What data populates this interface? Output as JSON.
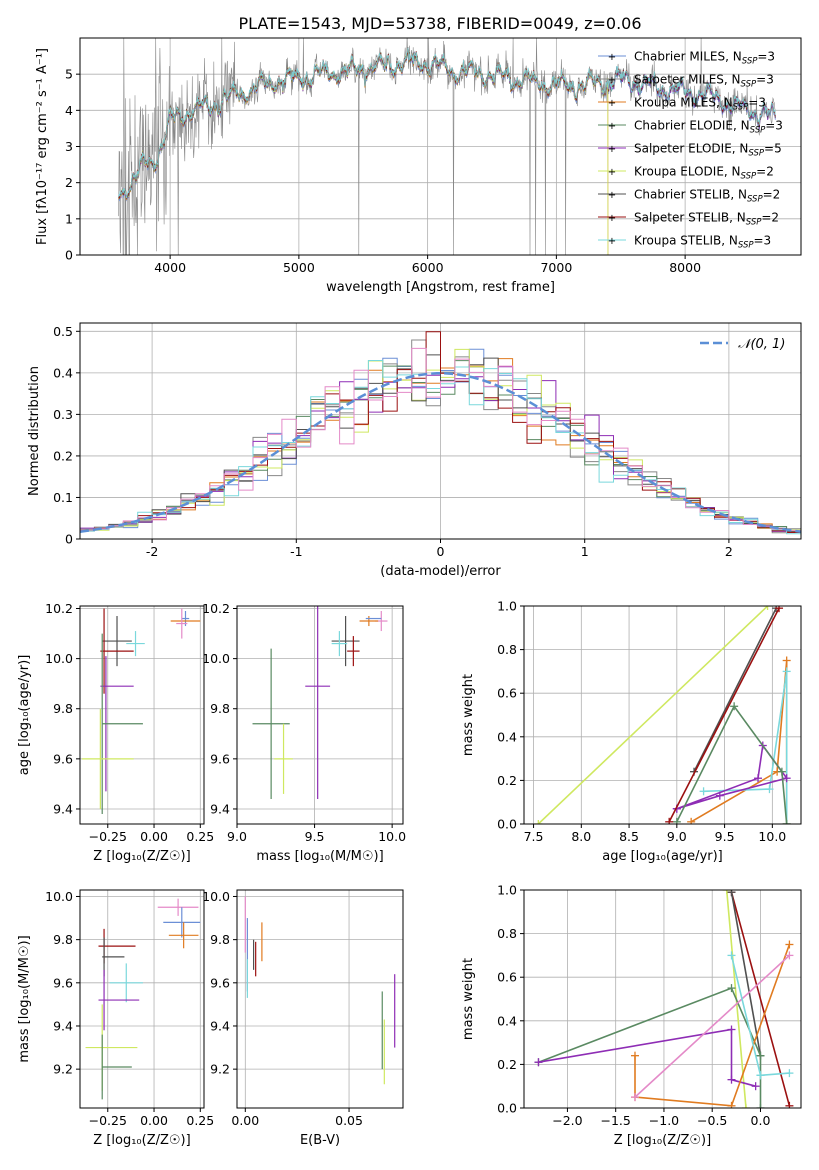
{
  "title": "PLATE=1543, MJD=53738, FIBERID=0049, z=0.06",
  "colors": {
    "chabrier_miles": "#6b8fd6",
    "salpeter_miles": "#888888",
    "kroupa_miles": "#e07b20",
    "chabrier_elodie": "#5a8a62",
    "salpeter_elodie": "#8e2db5",
    "kroupa_elodie": "#cfe860",
    "chabrier_stelib": "#505050",
    "salpeter_stelib": "#9b1010",
    "kroupa_stelib": "#7ad8dc",
    "pink": "#e48ac8",
    "normal_curve": "#5b8fd6"
  },
  "chart_data": [
    {
      "id": "spectrum",
      "type": "line",
      "xlabel": "wavelength [Angstrom, rest frame]",
      "ylabel": "Flux [fλ10⁻¹⁷ erg cm⁻² s⁻¹ A⁻¹]",
      "xlim": [
        3300,
        8900
      ],
      "ylim": [
        0,
        6
      ],
      "xticks": [
        4000,
        5000,
        6000,
        7000,
        8000
      ],
      "yticks": [
        0,
        1,
        2,
        3,
        4,
        5
      ],
      "legend_position": "right",
      "legend": [
        {
          "label": "Chabrier MILES, N_SSP=3",
          "color": "#6b8fd6"
        },
        {
          "label": "Salpeter MILES, N_SSP=3",
          "color": "#888888"
        },
        {
          "label": "Kroupa MILES, N_SSP=3",
          "color": "#e07b20"
        },
        {
          "label": "Chabrier ELODIE, N_SSP=3",
          "color": "#5a8a62"
        },
        {
          "label": "Salpeter ELODIE, N_SSP=5",
          "color": "#8e2db5"
        },
        {
          "label": "Kroupa ELODIE, N_SSP=2",
          "color": "#cfe860"
        },
        {
          "label": "Chabrier STELIB, N_SSP=2",
          "color": "#505050"
        },
        {
          "label": "Salpeter STELIB, N_SSP=2",
          "color": "#9b1010"
        },
        {
          "label": "Kroupa STELIB, N_SSP=3",
          "color": "#7ad8dc"
        }
      ],
      "data_range": [
        3600,
        8700
      ],
      "model_anchor_x": [
        3600,
        3700,
        3800,
        3900,
        4000,
        4100,
        4300,
        4500,
        4800,
        5000,
        5200,
        5400,
        5600,
        5800,
        6000,
        6200,
        6400,
        6600,
        6800,
        7000,
        7200,
        7400,
        7600,
        7800,
        8000,
        8200,
        8400,
        8600,
        8700
      ],
      "model_anchor_y": [
        1.7,
        2.0,
        2.5,
        2.7,
        3.7,
        3.9,
        4.1,
        4.4,
        4.8,
        4.9,
        5.0,
        5.1,
        5.2,
        5.3,
        5.3,
        5.1,
        5.0,
        4.9,
        4.8,
        4.7,
        4.7,
        4.8,
        4.8,
        4.6,
        4.5,
        4.4,
        4.1,
        3.9,
        3.8
      ]
    },
    {
      "id": "residuals",
      "type": "histogram",
      "xlabel": "(data-model)/error",
      "ylabel": "Normed distribution",
      "xlim": [
        -2.5,
        2.5
      ],
      "ylim": [
        0,
        0.52
      ],
      "xticks": [
        -2,
        -1,
        0,
        1,
        2
      ],
      "yticks": [
        0.0,
        0.1,
        0.2,
        0.3,
        0.4,
        0.5
      ],
      "legend_label": "𝒩(0, 1)",
      "legend_position": "top-right",
      "bin_width": 0.1
    },
    {
      "id": "age-z",
      "type": "errorbar",
      "xlabel": "Z [log₁₀(Z/Z☉)]",
      "ylabel": "age  [log₁₀(age/yr)]",
      "xlim": [
        -0.4,
        0.27
      ],
      "ylim": [
        9.34,
        10.21
      ],
      "xticks": [
        -0.25,
        0.0,
        0.25
      ],
      "xticklabels": [
        "−0.25",
        "0.00",
        "0.25"
      ],
      "yticks": [
        9.4,
        9.6,
        9.8,
        10.0,
        10.2
      ],
      "yticklabels": [
        "9.4",
        "9.6",
        "9.8",
        "10.0",
        "10.2"
      ],
      "points": [
        {
          "x": 0.17,
          "y": 10.16,
          "xerr": 0.02,
          "yerr": 0.03,
          "color": "#6b8fd6"
        },
        {
          "x": 0.17,
          "y": 10.15,
          "xerr": 0.08,
          "yerr": 0.0,
          "color": "#e07b20"
        },
        {
          "x": 0.15,
          "y": 10.14,
          "xerr": 0.03,
          "yerr": 0.06,
          "color": "#e48ac8"
        },
        {
          "x": -0.1,
          "y": 10.06,
          "xerr": 0.05,
          "yerr": 0.05,
          "color": "#7ad8dc"
        },
        {
          "x": -0.2,
          "y": 10.07,
          "xerr": 0.08,
          "yerr": 0.1,
          "color": "#505050"
        },
        {
          "x": -0.2,
          "y": 10.03,
          "xerr": 0.09,
          "yerr": 0.0,
          "color": "#9b1010"
        },
        {
          "x": -0.27,
          "y": 10.03,
          "xerr": 0.0,
          "yerr": 0.17,
          "color": "#9b1010"
        },
        {
          "x": -0.2,
          "y": 9.89,
          "xerr": 0.09,
          "yerr": 0.0,
          "color": "#8e2db5"
        },
        {
          "x": -0.26,
          "y": 9.74,
          "xerr": 0.0,
          "yerr": 0.27,
          "color": "#8e2db5"
        },
        {
          "x": -0.17,
          "y": 9.74,
          "xerr": 0.11,
          "yerr": 0.0,
          "color": "#5a8a62"
        },
        {
          "x": -0.28,
          "y": 9.74,
          "xerr": 0.0,
          "yerr": 0.36,
          "color": "#5a8a62"
        },
        {
          "x": -0.25,
          "y": 9.6,
          "xerr": 0.14,
          "yerr": 0.0,
          "color": "#cfe860"
        },
        {
          "x": -0.29,
          "y": 9.6,
          "xerr": 0.0,
          "yerr": 0.2,
          "color": "#cfe860"
        }
      ]
    },
    {
      "id": "age-mass",
      "type": "errorbar",
      "xlabel": "mass [log₁₀(M/M☉)]",
      "ylabel": "",
      "xlim": [
        9.0,
        10.07
      ],
      "ylim": [
        9.34,
        10.21
      ],
      "xticks": [
        9.0,
        9.5,
        10.0
      ],
      "xticklabels": [
        "9.0",
        "9.5",
        "10.0"
      ],
      "yticks": [
        9.4,
        9.6,
        9.8,
        10.0,
        10.2
      ],
      "yticklabels": [
        "9.4",
        "9.6",
        "9.8",
        "10.0",
        "10.2"
      ],
      "points": [
        {
          "x": 9.93,
          "y": 10.15,
          "xerr": 0.04,
          "yerr": 0.04,
          "color": "#e48ac8"
        },
        {
          "x": 9.85,
          "y": 10.15,
          "xerr": 0.06,
          "yerr": 0.02,
          "color": "#e07b20"
        },
        {
          "x": 9.88,
          "y": 10.16,
          "xerr": 0.05,
          "yerr": 0.0,
          "color": "#6b8fd6"
        },
        {
          "x": 9.7,
          "y": 10.07,
          "xerr": 0.09,
          "yerr": 0.1,
          "color": "#505050"
        },
        {
          "x": 9.66,
          "y": 10.06,
          "xerr": 0.05,
          "yerr": 0.05,
          "color": "#7ad8dc"
        },
        {
          "x": 9.75,
          "y": 10.03,
          "xerr": 0.04,
          "yerr": 0.06,
          "color": "#9b1010"
        },
        {
          "x": 9.52,
          "y": 9.89,
          "xerr": 0.08,
          "yerr": 0.45,
          "color": "#8e2db5"
        },
        {
          "x": 9.22,
          "y": 9.74,
          "xerr": 0.12,
          "yerr": 0.3,
          "color": "#5a8a62"
        },
        {
          "x": 9.3,
          "y": 9.6,
          "xerr": 0.06,
          "yerr": 0.14,
          "color": "#cfe860"
        }
      ]
    },
    {
      "id": "weight-age",
      "type": "line",
      "xlabel": "age  [log₁₀(age/yr)]",
      "ylabel": "mass weight",
      "xlim": [
        7.4,
        10.3
      ],
      "ylim": [
        0,
        1
      ],
      "xticks": [
        7.5,
        8.0,
        8.5,
        9.0,
        9.5,
        10.0
      ],
      "xticklabels": [
        "7.5",
        "8.0",
        "8.5",
        "9.0",
        "9.5",
        "10.0"
      ],
      "yticks": [
        0.0,
        0.2,
        0.4,
        0.6,
        0.8,
        1.0
      ],
      "yticklabels": [
        "0.0",
        "0.2",
        "0.4",
        "0.6",
        "0.8",
        "1.0"
      ],
      "series": [
        {
          "color": "#cfe860",
          "x": [
            7.55,
            9.95
          ],
          "y": [
            0.0,
            1.0
          ]
        },
        {
          "color": "#e07b20",
          "x": [
            9.15,
            10.05,
            10.15,
            10.15
          ],
          "y": [
            0.01,
            0.24,
            0.75,
            0.0
          ]
        },
        {
          "color": "#7ad8dc",
          "x": [
            9.28,
            9.97,
            10.15,
            10.15
          ],
          "y": [
            0.15,
            0.16,
            0.7,
            0.0
          ]
        },
        {
          "color": "#8e2db5",
          "x": [
            9.0,
            9.85,
            9.9,
            10.15,
            9.45,
            9.0
          ],
          "y": [
            0.07,
            0.21,
            0.36,
            0.21,
            0.13,
            0.07
          ]
        },
        {
          "color": "#5a8a62",
          "x": [
            9.0,
            9.6,
            10.1,
            10.15
          ],
          "y": [
            0.01,
            0.54,
            0.24,
            0.0
          ]
        },
        {
          "color": "#505050",
          "x": [
            9.18,
            10.04
          ],
          "y": [
            0.24,
            0.99
          ]
        },
        {
          "color": "#9b1010",
          "x": [
            8.92,
            10.07
          ],
          "y": [
            0.01,
            0.99
          ]
        }
      ]
    },
    {
      "id": "mass-z",
      "type": "errorbar",
      "xlabel": "Z [log₁₀(Z/Z☉)]",
      "ylabel": "mass [log₁₀(M/M☉)]",
      "xlim": [
        -0.4,
        0.27
      ],
      "ylim": [
        9.02,
        10.03
      ],
      "xticks": [
        -0.25,
        0.0,
        0.25
      ],
      "xticklabels": [
        "−0.25",
        "0.00",
        "0.25"
      ],
      "yticks": [
        9.2,
        9.4,
        9.6,
        9.8,
        10.0
      ],
      "yticklabels": [
        "9.2",
        "9.4",
        "9.6",
        "9.8",
        "10.0"
      ],
      "points": [
        {
          "x": 0.13,
          "y": 9.95,
          "xerr": 0.11,
          "yerr": 0.04,
          "color": "#e48ac8"
        },
        {
          "x": 0.15,
          "y": 9.88,
          "xerr": 0.1,
          "yerr": 0.07,
          "color": "#6b8fd6"
        },
        {
          "x": 0.16,
          "y": 9.82,
          "xerr": 0.08,
          "yerr": 0.06,
          "color": "#e07b20"
        },
        {
          "x": -0.2,
          "y": 9.77,
          "xerr": 0.1,
          "yerr": 0.0,
          "color": "#9b1010"
        },
        {
          "x": -0.27,
          "y": 9.77,
          "xerr": 0.0,
          "yerr": 0.08,
          "color": "#9b1010"
        },
        {
          "x": -0.22,
          "y": 9.72,
          "xerr": 0.06,
          "yerr": 0.0,
          "color": "#505050"
        },
        {
          "x": -0.27,
          "y": 9.72,
          "xerr": 0.0,
          "yerr": 0.09,
          "color": "#505050"
        },
        {
          "x": -0.15,
          "y": 9.6,
          "xerr": 0.09,
          "yerr": 0.09,
          "color": "#7ad8dc"
        },
        {
          "x": -0.19,
          "y": 9.52,
          "xerr": 0.11,
          "yerr": 0.0,
          "color": "#8e2db5"
        },
        {
          "x": -0.27,
          "y": 9.52,
          "xerr": 0.0,
          "yerr": 0.14,
          "color": "#8e2db5"
        },
        {
          "x": -0.23,
          "y": 9.3,
          "xerr": 0.14,
          "yerr": 0.0,
          "color": "#cfe860"
        },
        {
          "x": -0.28,
          "y": 9.3,
          "xerr": 0.0,
          "yerr": 0.2,
          "color": "#cfe860"
        },
        {
          "x": -0.2,
          "y": 9.21,
          "xerr": 0.08,
          "yerr": 0.0,
          "color": "#5a8a62"
        },
        {
          "x": -0.28,
          "y": 9.21,
          "xerr": 0.0,
          "yerr": 0.15,
          "color": "#5a8a62"
        }
      ]
    },
    {
      "id": "mass-ebv",
      "type": "errorbar",
      "xlabel": "E(B-V)",
      "ylabel": "",
      "xlim": [
        -0.004,
        0.076
      ],
      "ylim": [
        9.02,
        10.03
      ],
      "xticks": [
        0.0,
        0.05
      ],
      "xticklabels": [
        "0.00",
        "0.05"
      ],
      "yticks": [
        9.2,
        9.4,
        9.6,
        9.8,
        10.0
      ],
      "yticklabels": [
        "9.2",
        "9.4",
        "9.6",
        "9.8",
        "10.0"
      ],
      "points": [
        {
          "x": 0.0,
          "y": 9.87,
          "xerr": 0.0,
          "yerr": 0.13,
          "color": "#e48ac8"
        },
        {
          "x": 0.001,
          "y": 9.73,
          "xerr": 0.0,
          "yerr": 0.17,
          "color": "#6b8fd6"
        },
        {
          "x": 0.001,
          "y": 9.62,
          "xerr": 0.0,
          "yerr": 0.09,
          "color": "#7ad8dc"
        },
        {
          "x": 0.004,
          "y": 9.73,
          "xerr": 0.0,
          "yerr": 0.07,
          "color": "#505050"
        },
        {
          "x": 0.005,
          "y": 9.71,
          "xerr": 0.0,
          "yerr": 0.08,
          "color": "#9b1010"
        },
        {
          "x": 0.008,
          "y": 9.79,
          "xerr": 0.0,
          "yerr": 0.09,
          "color": "#e07b20"
        },
        {
          "x": 0.066,
          "y": 9.38,
          "xerr": 0.0,
          "yerr": 0.18,
          "color": "#5a8a62"
        },
        {
          "x": 0.067,
          "y": 9.28,
          "xerr": 0.0,
          "yerr": 0.15,
          "color": "#cfe860"
        },
        {
          "x": 0.072,
          "y": 9.47,
          "xerr": 0.0,
          "yerr": 0.17,
          "color": "#8e2db5"
        }
      ]
    },
    {
      "id": "weight-z",
      "type": "line",
      "xlabel": "Z [log₁₀(Z/Z☉)]",
      "ylabel": "mass weight",
      "xlim": [
        -2.45,
        0.42
      ],
      "ylim": [
        0,
        1
      ],
      "xticks": [
        -2.0,
        -1.5,
        -1.0,
        -0.5,
        0.0
      ],
      "xticklabels": [
        "−2.0",
        "−1.5",
        "−1.0",
        "−0.5",
        "0.0"
      ],
      "yticks": [
        0.0,
        0.2,
        0.4,
        0.6,
        0.8,
        1.0
      ],
      "yticklabels": [
        "0.0",
        "0.2",
        "0.4",
        "0.6",
        "0.8",
        "1.0"
      ],
      "series": [
        {
          "color": "#cfe860",
          "x": [
            -0.35,
            -0.15
          ],
          "y": [
            1.0,
            0.0
          ]
        },
        {
          "color": "#9b1010",
          "x": [
            -0.3,
            0.3
          ],
          "y": [
            0.99,
            0.01
          ]
        },
        {
          "color": "#505050",
          "x": [
            -0.3,
            0.0
          ],
          "y": [
            0.99,
            0.24
          ]
        },
        {
          "color": "#5a8a62",
          "x": [
            -2.3,
            -0.3,
            0.0,
            0.0
          ],
          "y": [
            0.21,
            0.55,
            0.24,
            0.0
          ]
        },
        {
          "color": "#8e2db5",
          "x": [
            -2.3,
            -0.3,
            -0.3,
            -0.05
          ],
          "y": [
            0.21,
            0.36,
            0.13,
            0.1
          ]
        },
        {
          "color": "#e07b20",
          "x": [
            -1.3,
            -1.3,
            -0.3,
            0.3
          ],
          "y": [
            0.24,
            0.05,
            0.01,
            0.75
          ]
        },
        {
          "color": "#e48ac8",
          "x": [
            -1.3,
            0.3
          ],
          "y": [
            0.05,
            0.7
          ]
        },
        {
          "color": "#7ad8dc",
          "x": [
            -0.3,
            0.0,
            0.0,
            0.3
          ],
          "y": [
            0.7,
            0.15,
            0.15,
            0.16
          ]
        }
      ]
    }
  ]
}
